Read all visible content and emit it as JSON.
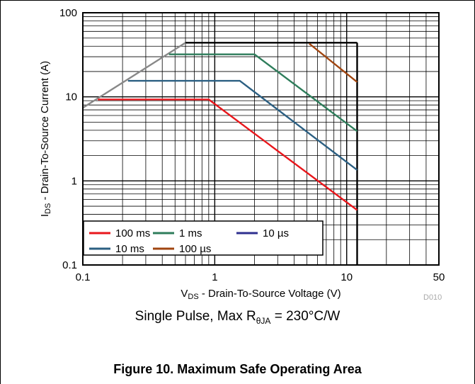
{
  "chart_data": {
    "type": "line",
    "scale": {
      "x": "log",
      "y": "log"
    },
    "xlim": [
      0.1,
      50
    ],
    "ylim": [
      0.1,
      100
    ],
    "x_ticks": [
      "0.1",
      "1",
      "10",
      "50"
    ],
    "y_ticks": [
      "100",
      "10",
      "1",
      "0.1"
    ],
    "x_tick_values": [
      0.1,
      1,
      10,
      50
    ],
    "y_tick_values": [
      100,
      10,
      1,
      0.1
    ],
    "xlabel": {
      "main": "V",
      "sub": "DS",
      "rest": " - Drain-To-Source Voltage (V)"
    },
    "ylabel": {
      "main": "I",
      "sub": "DS",
      "rest": " - Drain-To-Source Current (A)"
    },
    "grid": true,
    "legend_position": "bottom-left",
    "series": [
      {
        "name": "100 ms",
        "color": "#e8161b",
        "x": [
          0.13,
          0.9,
          12
        ],
        "y": [
          9.3,
          9.3,
          0.45
        ]
      },
      {
        "name": "10 ms",
        "color": "#2b5f82",
        "x": [
          0.22,
          1.55,
          12
        ],
        "y": [
          15.5,
          15.5,
          1.35
        ]
      },
      {
        "name": "1 ms",
        "color": "#2e7d5b",
        "x": [
          0.45,
          2,
          12
        ],
        "y": [
          32,
          32,
          3.9
        ]
      },
      {
        "name": "100 µs",
        "color": "#a0450f",
        "x": [
          5.2,
          12
        ],
        "y": [
          43,
          15
        ]
      },
      {
        "name": "10 µs",
        "color": "#2e2f8f",
        "x": [],
        "y": []
      }
    ],
    "limits": [
      {
        "kind": "rdson-limit",
        "color": "#888888",
        "x": [
          0.1,
          0.6
        ],
        "y": [
          7.4,
          44
        ]
      },
      {
        "kind": "current-limit",
        "color": "#000000",
        "x": [
          0.6,
          12
        ],
        "y": [
          44,
          44
        ]
      },
      {
        "kind": "voltage-limit",
        "color": "#000000",
        "x": [
          12,
          12
        ],
        "y": [
          44,
          0.1
        ]
      }
    ]
  },
  "conditions": {
    "prefix": "Single Pulse, Max R",
    "sub": "θJA",
    "suffix": " = 230°C/W"
  },
  "figure_code": "D010",
  "caption": "Figure 10. Maximum Safe Operating Area"
}
